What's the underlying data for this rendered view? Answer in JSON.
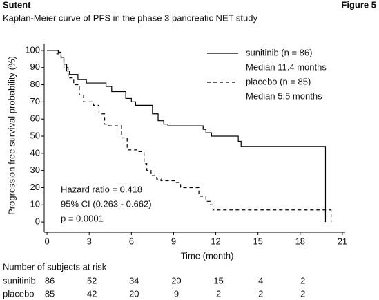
{
  "header": {
    "left": "Sutent",
    "right": "Figure 5"
  },
  "chart_data": {
    "type": "km",
    "title": "Kaplan-Meier curve of PFS in the phase 3 pancreatic NET study",
    "x_label": "Time (month)",
    "y_label": "Progression free survival probability (%)",
    "xlim": [
      -0.2,
      21.2
    ],
    "ylim": [
      -6,
      104
    ],
    "xticks": [
      0,
      3,
      6,
      9,
      12,
      15,
      18,
      21
    ],
    "yticks": [
      0,
      10,
      20,
      30,
      40,
      50,
      60,
      70,
      80,
      90,
      100
    ],
    "series": [
      {
        "name": "sunitinib (n = 86)",
        "median": "Median 11.4 months",
        "color": "#000000",
        "dash": false,
        "x": [
          0,
          0.8,
          1.0,
          1.2,
          1.4,
          1.6,
          2.2,
          2.8,
          4.2,
          4.6,
          5.6,
          6.0,
          6.3,
          7.5,
          7.9,
          8.3,
          8.6,
          11.1,
          11.3,
          11.7,
          13.6,
          13.8,
          19.8,
          19.8
        ],
        "values": [
          100,
          99,
          96,
          92,
          88,
          86,
          83,
          81,
          79,
          76,
          72,
          70,
          68,
          63,
          59,
          57,
          56,
          54,
          52,
          50,
          47,
          44,
          44,
          0
        ]
      },
      {
        "name": "placebo (n = 85)",
        "median": "Median 5.5 months",
        "color": "#000000",
        "dash": true,
        "x": [
          0,
          0.7,
          1.0,
          1.2,
          1.5,
          1.9,
          2.3,
          2.6,
          3.3,
          3.7,
          4.1,
          4.4,
          5.3,
          5.7,
          6.5,
          6.9,
          7.1,
          7.4,
          7.8,
          8.1,
          9.2,
          9.5,
          10.8,
          11.3,
          11.6,
          11.8,
          20.2,
          20.2
        ],
        "values": [
          100,
          98,
          95,
          90,
          84,
          80,
          74,
          70,
          68,
          63,
          57,
          56,
          49,
          42,
          41,
          34,
          30,
          27,
          25,
          24,
          23,
          20,
          15,
          12,
          10,
          7,
          7,
          0
        ]
      }
    ],
    "annotation": [
      "Hazard ratio = 0.418",
      "95% CI (0.263 - 0.662)",
      "p = 0.0001"
    ],
    "at_risk": {
      "title": "Number of subjects at risk",
      "rows": [
        {
          "label": "sunitinib",
          "values": [
            86,
            52,
            34,
            20,
            15,
            4,
            2
          ]
        },
        {
          "label": "placebo",
          "values": [
            85,
            42,
            20,
            9,
            2,
            2,
            2
          ]
        }
      ]
    }
  }
}
